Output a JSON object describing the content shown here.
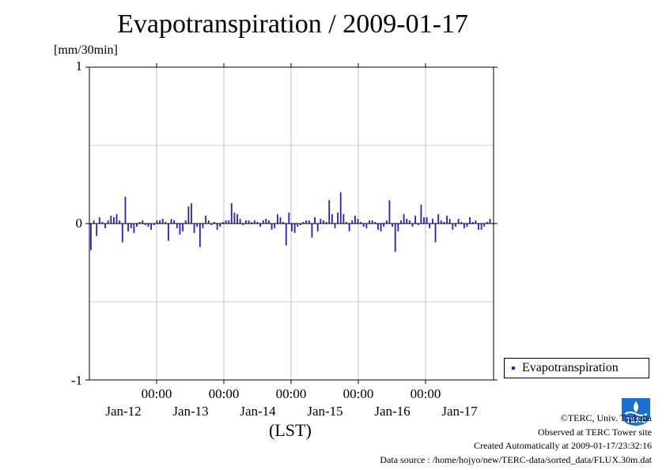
{
  "chart_data": {
    "type": "bar",
    "title": "Evapotranspiration / 2009-01-17",
    "unit_label": "[mm/30min]",
    "xlabel": "(LST)",
    "ylim": [
      -1,
      1
    ],
    "y_ticks": [
      "1",
      "0",
      "-1"
    ],
    "x_time_ticks": [
      "00:00",
      "00:00",
      "00:00",
      "00:00",
      "00:00"
    ],
    "x_date_ticks": [
      "Jan-12",
      "Jan-13",
      "Jan-14",
      "Jan-15",
      "Jan-16",
      "Jan-17"
    ],
    "grid": true,
    "legend_position": "bottom-right",
    "series": [
      {
        "name": "Evapotranspiration",
        "color": "#2020d0",
        "x_start": "2009-01-11 00:00",
        "interval": "30min",
        "values": [
          -0.17,
          0.02,
          -0.08,
          0.04,
          0.01,
          -0.03,
          0.02,
          0.05,
          0.04,
          0.06,
          0.02,
          -0.12,
          0.17,
          -0.05,
          -0.03,
          -0.06,
          -0.02,
          0.01,
          0.02,
          -0.01,
          -0.02,
          -0.04,
          -0.01,
          0.02,
          0.02,
          0.03,
          0.01,
          -0.11,
          0.03,
          0.02,
          -0.03,
          -0.07,
          -0.05,
          0.02,
          0.11,
          0.13,
          -0.06,
          -0.02,
          -0.15,
          -0.03,
          0.05,
          0.02,
          -0.01,
          0.01,
          -0.04,
          -0.02,
          0.01,
          0.02,
          0.02,
          0.13,
          0.07,
          0.06,
          0.03,
          -0.01,
          0.02,
          0.02,
          0.01,
          0.02,
          0.01,
          -0.02,
          0.02,
          0.03,
          0.02,
          -0.04,
          -0.03,
          0.06,
          0.04,
          0.01,
          -0.14,
          0.07,
          -0.05,
          -0.06,
          -0.02,
          -0.01,
          0.01,
          0.02,
          0.02,
          -0.09,
          0.04,
          -0.05,
          0.03,
          0.02,
          0.01,
          0.15,
          0.06,
          -0.03,
          0.07,
          0.2,
          0.06,
          0.01,
          -0.05,
          0.02,
          0.05,
          0.03,
          0.01,
          -0.02,
          -0.03,
          0.02,
          0.02,
          0.01,
          -0.04,
          -0.05,
          -0.02,
          0.02,
          0.15,
          -0.02,
          -0.18,
          -0.05,
          0.02,
          0.06,
          0.03,
          0.02,
          -0.02,
          0.05,
          -0.01,
          0.12,
          0.04,
          0.04,
          -0.03,
          0.03,
          -0.12,
          0.06,
          0.02,
          0.01,
          0.05,
          0.03,
          -0.04,
          -0.02,
          0.03,
          0.01,
          -0.03,
          -0.02,
          0.04,
          0.01,
          0.02,
          -0.04,
          -0.04,
          -0.02,
          0.01,
          0.03,
          -0.04,
          0.05,
          0.04,
          0.06,
          0.03,
          0.02,
          0.02,
          -0.02,
          -0.03,
          -0.01,
          0.02,
          0.01,
          -0.02,
          -0.03,
          -0.02,
          0.01,
          -0.03,
          0.02,
          0.03,
          -0.05,
          -0.09,
          -0.13,
          0.03,
          -0.02,
          0.09,
          0.14,
          0.05,
          0.07,
          0.12,
          -0.02,
          -0.05,
          0.03,
          0.03,
          0.01,
          -0.02,
          -0.03,
          0.02,
          0.05,
          0.03,
          -0.03,
          0.12,
          0.03,
          0.02,
          -0.05,
          0.01,
          0.07,
          0.02,
          -0.02,
          0.03,
          0.02,
          -0.07,
          -0.12,
          -0.09,
          -0.04,
          0.02,
          0.07,
          0.04,
          -0.06,
          0.14,
          -0.02,
          -0.06,
          0.05,
          -0.05,
          0.21,
          -0.03,
          0.03,
          0.02,
          -0.01,
          0.02,
          0.08,
          0.01,
          -0.08,
          -0.02,
          -0.04,
          0.03,
          0.01,
          -0.01,
          -0.01,
          0.16,
          -0.02,
          -0.22,
          -0.04,
          0.01,
          -0.01,
          0.02,
          0.01,
          -0.02,
          0.0,
          -0.03
        ]
      }
    ]
  },
  "credits": {
    "line1": "©TERC, Univ. Tsukuba",
    "line2": "Observed at TERC Tower site",
    "line3": "Created Automatically at 2009-01-17/23:32:16",
    "line4": "Data source : /home/hojyo/new/TERC-data/sorted_data/FLUX.30m.dat"
  },
  "logo": {
    "text": "TERC",
    "color": "#1a6fd0"
  }
}
